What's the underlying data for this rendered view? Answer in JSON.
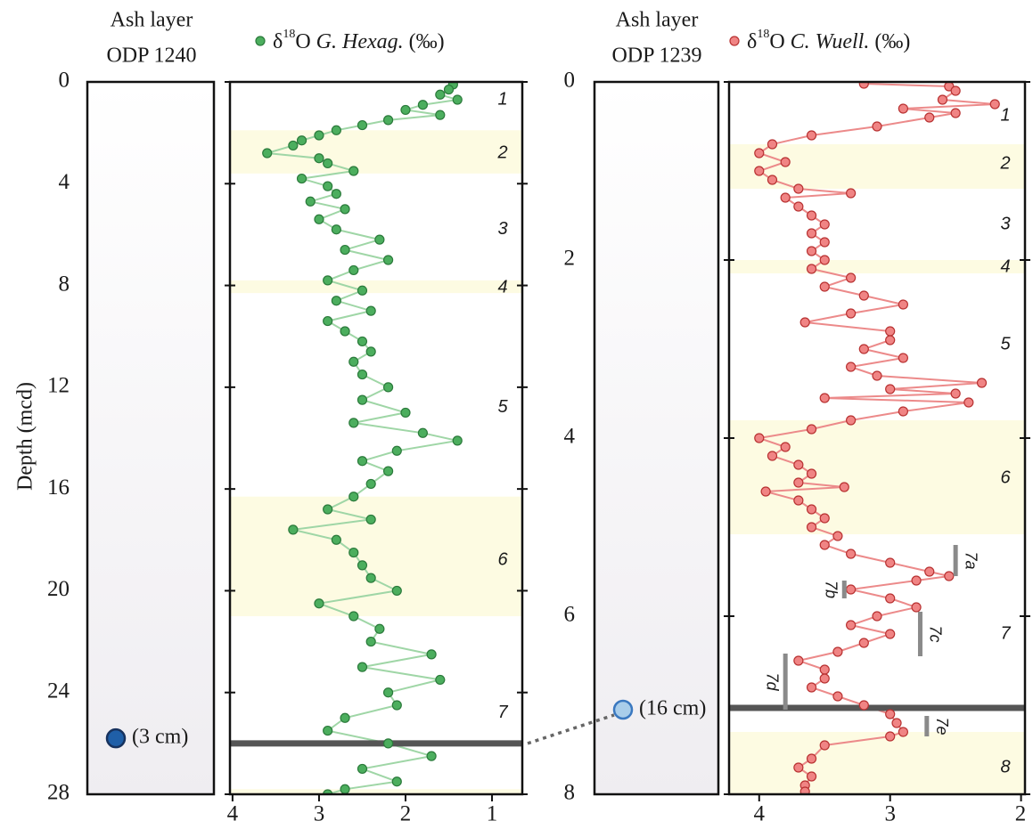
{
  "chart_data": [
    {
      "type": "ash",
      "title": "Ash layer",
      "subtitle": "ODP 1240",
      "ylabel": "Depth (mcd)",
      "ylim": [
        0,
        28
      ],
      "yticks": [
        0,
        4,
        8,
        12,
        16,
        20,
        24,
        28
      ],
      "marker": {
        "depth": 25.8,
        "label": "(3 cm)",
        "color": "#1f5fa8",
        "stroke": "#17325e"
      }
    },
    {
      "type": "scatter-line",
      "name_parts": [
        "δ",
        "18",
        "O",
        "G. Hexag.",
        "(‰)"
      ],
      "color": "#4cae5e",
      "edge": "#2b7a3b",
      "line_color": "#9fd6a6",
      "xlim": [
        4.03,
        0.65
      ],
      "xticks": [
        4,
        3,
        2,
        1
      ],
      "ylim": [
        0,
        28
      ],
      "yticks": [
        0,
        4,
        8,
        12,
        16,
        20,
        24,
        28
      ],
      "x": [
        1.45,
        1.5,
        1.6,
        1.4,
        1.8,
        2.0,
        1.6,
        2.2,
        2.5,
        2.8,
        3.0,
        3.2,
        3.3,
        3.6,
        3.0,
        2.9,
        2.6,
        3.2,
        2.9,
        2.8,
        3.1,
        2.7,
        3.0,
        2.8,
        2.3,
        2.7,
        2.2,
        2.6,
        2.9,
        2.5,
        2.8,
        2.4,
        2.9,
        2.7,
        2.5,
        2.4,
        2.6,
        2.5,
        2.2,
        2.5,
        2.0,
        2.6,
        1.8,
        1.4,
        2.1,
        2.5,
        2.2,
        2.4,
        2.6,
        2.9,
        2.4,
        3.3,
        2.8,
        2.6,
        2.5,
        2.4,
        2.1,
        3.0,
        2.6,
        2.3,
        2.4,
        1.7,
        2.5,
        1.6,
        2.2,
        2.1,
        2.7,
        2.9,
        2.2,
        1.7,
        2.5,
        2.1,
        2.7,
        2.9
      ],
      "values": [
        0.1,
        0.3,
        0.5,
        0.7,
        0.9,
        1.1,
        1.3,
        1.5,
        1.7,
        1.9,
        2.1,
        2.3,
        2.5,
        2.8,
        3.0,
        3.2,
        3.5,
        3.8,
        4.1,
        4.4,
        4.7,
        5.0,
        5.4,
        5.8,
        6.2,
        6.6,
        7.0,
        7.4,
        7.8,
        8.2,
        8.6,
        9.0,
        9.4,
        9.8,
        10.2,
        10.6,
        11.0,
        11.5,
        12.0,
        12.5,
        13.0,
        13.4,
        13.8,
        14.1,
        14.5,
        14.9,
        15.3,
        15.8,
        16.3,
        16.8,
        17.2,
        17.6,
        18.0,
        18.5,
        19.0,
        19.5,
        20.0,
        20.5,
        21.0,
        21.5,
        22.0,
        22.5,
        23.0,
        23.5,
        24.0,
        24.5,
        25.0,
        25.5,
        26.0,
        26.5,
        27.0,
        27.5,
        27.8,
        28.0
      ],
      "bands": [
        [
          1.9,
          3.6
        ],
        [
          7.8,
          8.3
        ],
        [
          16.3,
          21.0
        ],
        [
          27.8,
          28.0
        ]
      ],
      "band_color": "#fdfbe2",
      "stages": [
        {
          "label": "1",
          "depth": 0.7
        },
        {
          "label": "2",
          "depth": 2.8
        },
        {
          "label": "3",
          "depth": 5.8
        },
        {
          "label": "4",
          "depth": 8.1
        },
        {
          "label": "5",
          "depth": 12.8
        },
        {
          "label": "6",
          "depth": 18.8
        },
        {
          "label": "7",
          "depth": 24.8
        }
      ],
      "stage_colors": [
        "#c9c5a6",
        "#e8865a"
      ],
      "ash_depth": 26.0,
      "ash_color": "#555555"
    },
    {
      "type": "ash",
      "title": "Ash layer",
      "subtitle": "ODP 1239",
      "ylim": [
        0,
        8
      ],
      "yticks": [
        0,
        2,
        4,
        6,
        8
      ],
      "marker": {
        "depth": 7.05,
        "label": "(16 cm)",
        "color": "#a9cdea",
        "stroke": "#3a78c0"
      }
    },
    {
      "type": "scatter-line",
      "name_parts": [
        "δ",
        "18",
        "O",
        "C. Wuell.",
        "(‰)"
      ],
      "color": "#f08484",
      "edge": "#b83232",
      "line_color": "#ec8a8a",
      "xlim": [
        4.23,
        1.97
      ],
      "xticks": [
        4,
        3,
        2
      ],
      "ylim": [
        0,
        8
      ],
      "yticks": [
        0,
        2,
        4,
        6,
        8
      ],
      "x": [
        3.2,
        2.55,
        2.5,
        2.6,
        2.2,
        2.9,
        2.5,
        2.7,
        3.1,
        3.6,
        3.9,
        4.0,
        3.8,
        4.0,
        3.9,
        3.7,
        3.3,
        3.8,
        3.7,
        3.6,
        3.5,
        3.6,
        3.5,
        3.6,
        3.5,
        3.6,
        3.3,
        3.5,
        3.2,
        2.9,
        3.3,
        3.65,
        3.0,
        3.0,
        3.2,
        2.9,
        3.3,
        3.1,
        2.3,
        3.0,
        2.5,
        3.5,
        2.4,
        2.9,
        3.3,
        3.6,
        4.0,
        3.8,
        3.9,
        3.7,
        3.6,
        3.7,
        3.35,
        3.95,
        3.7,
        3.6,
        3.5,
        3.6,
        3.4,
        3.5,
        3.3,
        3.0,
        2.7,
        2.55,
        2.8,
        3.3,
        3.0,
        2.8,
        3.1,
        3.3,
        3.0,
        3.2,
        3.4,
        3.7,
        3.5,
        3.5,
        3.6,
        3.4,
        3.2,
        3.0,
        2.95,
        2.9,
        3.0,
        3.5,
        3.6,
        3.7,
        3.6,
        3.65,
        3.65
      ],
      "values": [
        0.02,
        0.05,
        0.1,
        0.2,
        0.25,
        0.3,
        0.35,
        0.4,
        0.5,
        0.6,
        0.7,
        0.8,
        0.9,
        1.0,
        1.1,
        1.2,
        1.25,
        1.3,
        1.4,
        1.5,
        1.6,
        1.7,
        1.8,
        1.9,
        2.0,
        2.1,
        2.2,
        2.3,
        2.4,
        2.5,
        2.6,
        2.7,
        2.8,
        2.9,
        3.0,
        3.1,
        3.2,
        3.3,
        3.38,
        3.45,
        3.5,
        3.55,
        3.6,
        3.7,
        3.8,
        3.9,
        4.0,
        4.1,
        4.2,
        4.3,
        4.4,
        4.5,
        4.55,
        4.6,
        4.7,
        4.8,
        4.9,
        5.0,
        5.1,
        5.2,
        5.3,
        5.4,
        5.5,
        5.55,
        5.6,
        5.7,
        5.8,
        5.9,
        6.0,
        6.1,
        6.2,
        6.3,
        6.4,
        6.5,
        6.6,
        6.7,
        6.8,
        6.9,
        7.0,
        7.1,
        7.2,
        7.3,
        7.35,
        7.45,
        7.6,
        7.7,
        7.8,
        7.9,
        7.97
      ],
      "bands": [
        [
          0.7,
          1.2
        ],
        [
          2.0,
          2.15
        ],
        [
          3.8,
          5.08
        ],
        [
          7.3,
          8.0
        ]
      ],
      "band_color": "#fdfbe2",
      "stages": [
        {
          "label": "1",
          "depth": 0.38
        },
        {
          "label": "2",
          "depth": 0.92
        },
        {
          "label": "3",
          "depth": 1.6
        },
        {
          "label": "4",
          "depth": 2.08
        },
        {
          "label": "5",
          "depth": 2.95
        },
        {
          "label": "6",
          "depth": 4.45
        },
        {
          "label": "7",
          "depth": 6.2
        },
        {
          "label": "8",
          "depth": 7.7
        }
      ],
      "stage_colors": [
        "#c9c5a6",
        "#e8865a"
      ],
      "substages": [
        {
          "label": "7a",
          "x": 2.5,
          "depth": [
            5.2,
            5.55
          ],
          "side": "right"
        },
        {
          "label": "7b",
          "x": 3.35,
          "depth": [
            5.6,
            5.8
          ],
          "side": "left"
        },
        {
          "label": "7c",
          "x": 2.77,
          "depth": [
            5.95,
            6.45
          ],
          "side": "right"
        },
        {
          "label": "7d",
          "x": 3.8,
          "depth": [
            6.42,
            7.05
          ],
          "side": "left"
        },
        {
          "label": "7e",
          "x": 2.72,
          "depth": [
            7.12,
            7.35
          ],
          "side": "right"
        }
      ],
      "substage_color": "#8a8a8a",
      "ash_depth": 7.03,
      "ash_color": "#555555"
    }
  ]
}
